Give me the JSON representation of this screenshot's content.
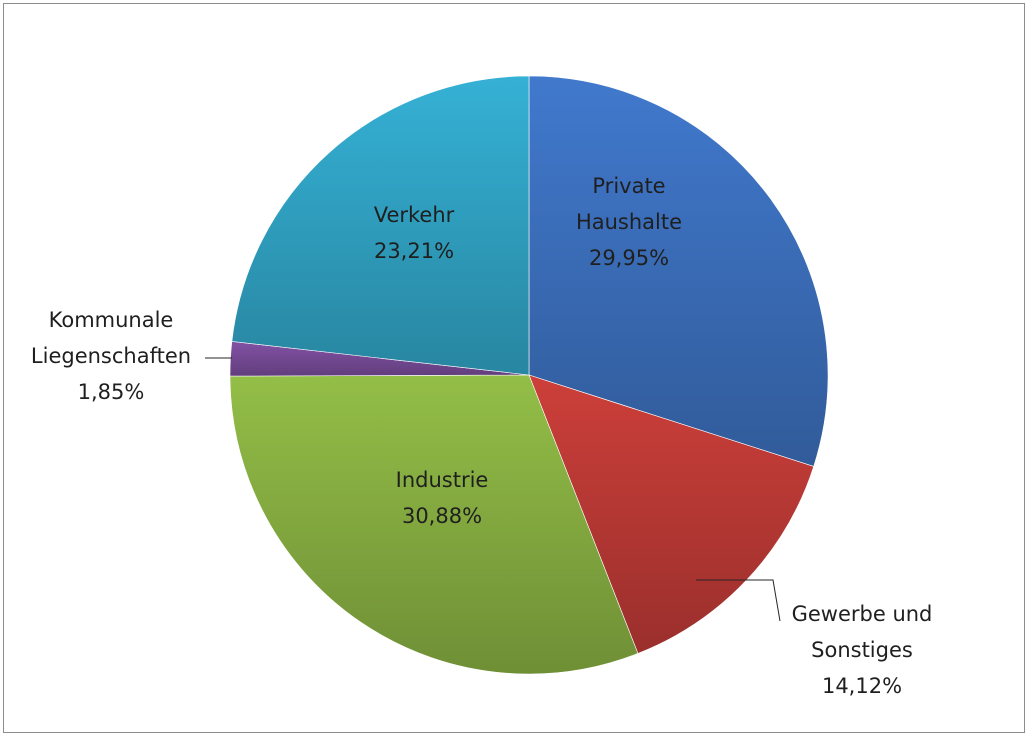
{
  "chart_data": {
    "type": "pie",
    "title": "",
    "slices": [
      {
        "label_lines": [
          "Private",
          "Haushalte"
        ],
        "value": 29.95,
        "value_label": "29,95%",
        "color": "#3d72c1"
      },
      {
        "label_lines": [
          "Gewerbe und",
          "Sonstiges"
        ],
        "value": 14.12,
        "value_label": "14,12%",
        "color": "#c13b37"
      },
      {
        "label_lines": [
          "Industrie"
        ],
        "value": 30.88,
        "value_label": "30,88%",
        "color": "#8bb343"
      },
      {
        "label_lines": [
          "Kommunale",
          "Liegenschaften"
        ],
        "value": 1.85,
        "value_label": "1,85%",
        "color": "#7b4d9c"
      },
      {
        "label_lines": [
          "Verkehr"
        ],
        "value": 23.21,
        "value_label": "23,21%",
        "color": "#32a7c9"
      }
    ]
  }
}
